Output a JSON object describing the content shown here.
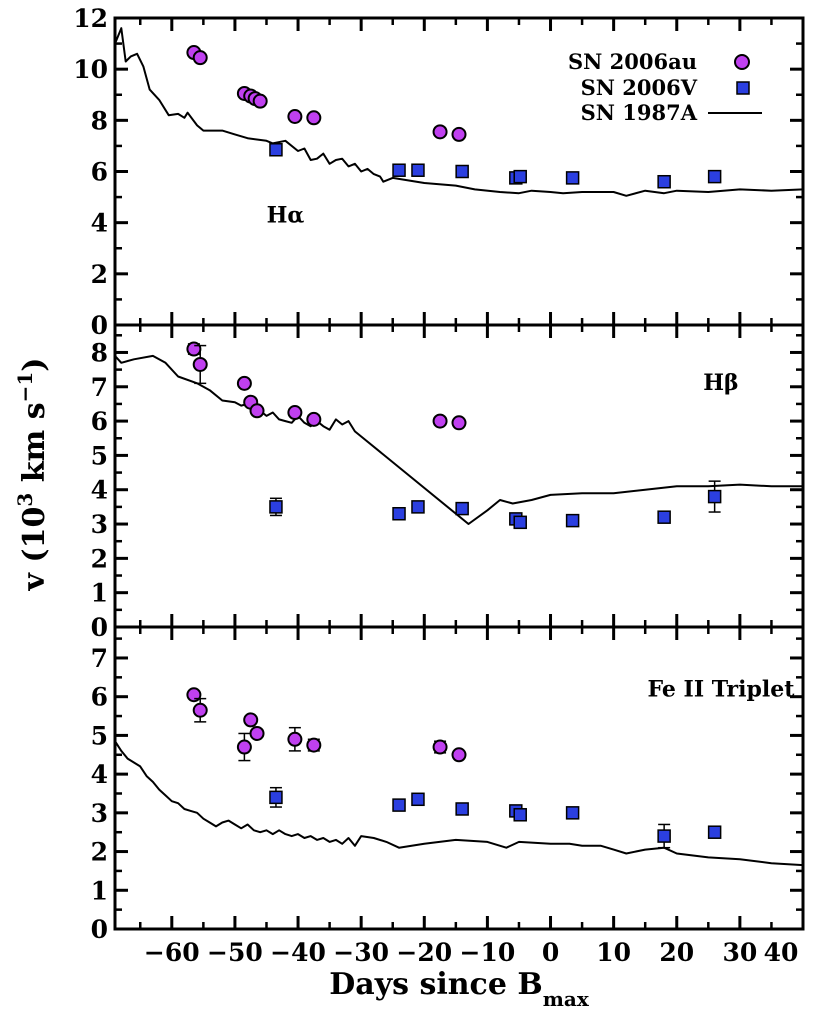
{
  "chart_data": {
    "type": "scatter",
    "xlabel": "Days since B",
    "xlabel_sub": "max",
    "ylabel_main": "v (10",
    "ylabel_sup1": "3",
    "ylabel_mid": " km s",
    "ylabel_sup2": "−1",
    "ylabel_end": ")",
    "xlim": [
      -69,
      40
    ],
    "xticks": [
      -60,
      -50,
      -40,
      -30,
      -20,
      -10,
      0,
      10,
      20,
      30,
      40
    ],
    "xtick_labels": [
      "−60",
      "−50",
      "−40",
      "−30",
      "−20",
      "−10",
      "0",
      "10",
      "20",
      "30",
      "40"
    ],
    "legend": {
      "position": "top-right",
      "entries": [
        {
          "label": "SN 2006au",
          "marker": "circle",
          "color": "#c040f0"
        },
        {
          "label": "SN 2006V",
          "marker": "square",
          "color": "#2b3fe0"
        },
        {
          "label": "SN 1987A",
          "marker": "line",
          "color": "#000000"
        }
      ]
    },
    "panels": [
      {
        "label": "Hα",
        "label_anchor": {
          "x": -42,
          "y": 4.0
        },
        "ylim": [
          0,
          12
        ],
        "yticks": [
          0,
          2,
          4,
          6,
          8,
          10,
          12
        ],
        "sn2006au": [
          {
            "x": -56.5,
            "y": 10.65
          },
          {
            "x": -55.5,
            "y": 10.45
          },
          {
            "x": -48.5,
            "y": 9.05
          },
          {
            "x": -47.5,
            "y": 8.95
          },
          {
            "x": -46.8,
            "y": 8.85
          },
          {
            "x": -46.0,
            "y": 8.75
          },
          {
            "x": -40.5,
            "y": 8.15
          },
          {
            "x": -37.5,
            "y": 8.1
          },
          {
            "x": -17.5,
            "y": 7.55,
            "err": 0.15
          },
          {
            "x": -14.5,
            "y": 7.45
          }
        ],
        "sn2006v": [
          {
            "x": -43.5,
            "y": 6.85
          },
          {
            "x": -24.0,
            "y": 6.05
          },
          {
            "x": -21.0,
            "y": 6.05
          },
          {
            "x": -14.0,
            "y": 6.0
          },
          {
            "x": -5.5,
            "y": 5.75
          },
          {
            "x": -4.8,
            "y": 5.8
          },
          {
            "x": 3.5,
            "y": 5.75
          },
          {
            "x": 18.0,
            "y": 5.6
          },
          {
            "x": 26.0,
            "y": 5.8
          }
        ],
        "sn1987a": [
          [
            -69,
            11.0
          ],
          [
            -68,
            11.6
          ],
          [
            -67.3,
            10.3
          ],
          [
            -66.5,
            10.5
          ],
          [
            -65.5,
            10.6
          ],
          [
            -64.5,
            10.1
          ],
          [
            -63.5,
            9.2
          ],
          [
            -62,
            8.8
          ],
          [
            -60.5,
            8.2
          ],
          [
            -59,
            8.25
          ],
          [
            -58,
            8.1
          ],
          [
            -57.5,
            8.3
          ],
          [
            -56,
            7.8
          ],
          [
            -55,
            7.6
          ],
          [
            -52,
            7.6
          ],
          [
            -50,
            7.45
          ],
          [
            -48,
            7.3
          ],
          [
            -45,
            7.2
          ],
          [
            -44,
            7.1
          ],
          [
            -42,
            7.2
          ],
          [
            -40,
            6.8
          ],
          [
            -39,
            6.9
          ],
          [
            -38,
            6.45
          ],
          [
            -37,
            6.5
          ],
          [
            -36,
            6.7
          ],
          [
            -35,
            6.3
          ],
          [
            -34,
            6.45
          ],
          [
            -33,
            6.5
          ],
          [
            -32,
            6.2
          ],
          [
            -31,
            6.3
          ],
          [
            -30,
            6.0
          ],
          [
            -29,
            6.1
          ],
          [
            -28,
            5.9
          ],
          [
            -27,
            5.8
          ],
          [
            -26.5,
            5.6
          ],
          [
            -25,
            5.75
          ],
          [
            -20,
            5.55
          ],
          [
            -15,
            5.45
          ],
          [
            -12,
            5.3
          ],
          [
            -8,
            5.2
          ],
          [
            -5,
            5.15
          ],
          [
            -3,
            5.25
          ],
          [
            0,
            5.2
          ],
          [
            2,
            5.15
          ],
          [
            5,
            5.2
          ],
          [
            10,
            5.2
          ],
          [
            12,
            5.05
          ],
          [
            15,
            5.25
          ],
          [
            18,
            5.15
          ],
          [
            20,
            5.25
          ],
          [
            25,
            5.2
          ],
          [
            30,
            5.3
          ],
          [
            35,
            5.25
          ],
          [
            40,
            5.3
          ]
        ]
      },
      {
        "label": "Hβ",
        "label_anchor": {
          "x": 27,
          "y": 6.9
        },
        "ylim": [
          0,
          8.8
        ],
        "yticks": [
          0,
          1,
          2,
          3,
          4,
          5,
          6,
          7,
          8
        ],
        "sn2006au": [
          {
            "x": -56.5,
            "y": 8.1,
            "err": 0.15
          },
          {
            "x": -55.5,
            "y": 7.65,
            "err": 0.55
          },
          {
            "x": -48.5,
            "y": 7.1
          },
          {
            "x": -47.5,
            "y": 6.55
          },
          {
            "x": -46.5,
            "y": 6.3
          },
          {
            "x": -40.5,
            "y": 6.25
          },
          {
            "x": -37.5,
            "y": 6.05,
            "err": 0.12
          },
          {
            "x": -17.5,
            "y": 6.0
          },
          {
            "x": -14.5,
            "y": 5.95
          }
        ],
        "sn2006v": [
          {
            "x": -43.5,
            "y": 3.5,
            "err": 0.25
          },
          {
            "x": -24.0,
            "y": 3.3
          },
          {
            "x": -21.0,
            "y": 3.5
          },
          {
            "x": -14.0,
            "y": 3.45
          },
          {
            "x": -5.5,
            "y": 3.15
          },
          {
            "x": -4.8,
            "y": 3.05,
            "err": 0.1
          },
          {
            "x": 3.5,
            "y": 3.1
          },
          {
            "x": 18.0,
            "y": 3.2
          },
          {
            "x": 26.0,
            "y": 3.8,
            "err": 0.45
          }
        ],
        "sn1987a": [
          [
            -69,
            7.9
          ],
          [
            -68,
            7.7
          ],
          [
            -66,
            7.8
          ],
          [
            -63,
            7.9
          ],
          [
            -61,
            7.7
          ],
          [
            -59,
            7.3
          ],
          [
            -56,
            7.1
          ],
          [
            -54,
            6.9
          ],
          [
            -52,
            6.6
          ],
          [
            -50,
            6.55
          ],
          [
            -49,
            6.45
          ],
          [
            -48,
            6.5
          ],
          [
            -47,
            6.45
          ],
          [
            -46,
            6.3
          ],
          [
            -45,
            6.15
          ],
          [
            -44,
            6.25
          ],
          [
            -43,
            6.05
          ],
          [
            -42,
            6.0
          ],
          [
            -41,
            5.95
          ],
          [
            -40,
            6.15
          ],
          [
            -39,
            5.95
          ],
          [
            -38,
            5.85
          ],
          [
            -37,
            6.0
          ],
          [
            -36,
            5.85
          ],
          [
            -35,
            5.75
          ],
          [
            -34,
            6.05
          ],
          [
            -33,
            5.9
          ],
          [
            -32,
            6.0
          ],
          [
            -31,
            5.7
          ],
          [
            -30,
            5.55
          ],
          [
            -13,
            3.0
          ],
          [
            -10,
            3.4
          ],
          [
            -8,
            3.7
          ],
          [
            -6,
            3.6
          ],
          [
            -3,
            3.7
          ],
          [
            0,
            3.85
          ],
          [
            5,
            3.9
          ],
          [
            10,
            3.9
          ],
          [
            15,
            4.0
          ],
          [
            20,
            4.1
          ],
          [
            25,
            4.1
          ],
          [
            30,
            4.15
          ],
          [
            35,
            4.1
          ],
          [
            40,
            4.1
          ]
        ]
      },
      {
        "label": "Fe II Triplet",
        "label_anchor": {
          "x": 27,
          "y": 6.0
        },
        "ylim": [
          0,
          7.8
        ],
        "yticks": [
          0,
          1,
          2,
          3,
          4,
          5,
          6,
          7
        ],
        "sn2006au": [
          {
            "x": -56.5,
            "y": 6.05
          },
          {
            "x": -55.5,
            "y": 5.65,
            "err": 0.3
          },
          {
            "x": -48.5,
            "y": 4.7,
            "err": 0.35
          },
          {
            "x": -47.5,
            "y": 5.4
          },
          {
            "x": -46.5,
            "y": 5.05
          },
          {
            "x": -40.5,
            "y": 4.9,
            "err": 0.3
          },
          {
            "x": -37.5,
            "y": 4.75,
            "err": 0.15
          },
          {
            "x": -17.5,
            "y": 4.7,
            "err": 0.15
          },
          {
            "x": -14.5,
            "y": 4.5
          }
        ],
        "sn2006v": [
          {
            "x": -43.5,
            "y": 3.4,
            "err": 0.25
          },
          {
            "x": -24.0,
            "y": 3.2
          },
          {
            "x": -21.0,
            "y": 3.35
          },
          {
            "x": -14.0,
            "y": 3.1
          },
          {
            "x": -5.5,
            "y": 3.05,
            "err": 0.1
          },
          {
            "x": -4.8,
            "y": 2.95,
            "err": 0.15
          },
          {
            "x": 3.5,
            "y": 3.0
          },
          {
            "x": 18.0,
            "y": 2.4,
            "err": 0.3
          },
          {
            "x": 26.0,
            "y": 2.5
          }
        ],
        "sn1987a": [
          [
            -69,
            4.85
          ],
          [
            -68,
            4.6
          ],
          [
            -67,
            4.4
          ],
          [
            -66,
            4.3
          ],
          [
            -65,
            4.2
          ],
          [
            -64,
            3.95
          ],
          [
            -63,
            3.8
          ],
          [
            -62,
            3.6
          ],
          [
            -61,
            3.45
          ],
          [
            -60,
            3.3
          ],
          [
            -59,
            3.25
          ],
          [
            -58,
            3.1
          ],
          [
            -57,
            3.05
          ],
          [
            -56,
            3.0
          ],
          [
            -55,
            2.85
          ],
          [
            -54,
            2.75
          ],
          [
            -53,
            2.65
          ],
          [
            -52,
            2.75
          ],
          [
            -51,
            2.8
          ],
          [
            -50,
            2.7
          ],
          [
            -49,
            2.6
          ],
          [
            -48,
            2.7
          ],
          [
            -47,
            2.55
          ],
          [
            -46,
            2.5
          ],
          [
            -45,
            2.55
          ],
          [
            -44,
            2.45
          ],
          [
            -43,
            2.55
          ],
          [
            -42,
            2.45
          ],
          [
            -41,
            2.4
          ],
          [
            -40,
            2.45
          ],
          [
            -39,
            2.35
          ],
          [
            -38,
            2.4
          ],
          [
            -37,
            2.3
          ],
          [
            -36,
            2.35
          ],
          [
            -35,
            2.25
          ],
          [
            -34,
            2.3
          ],
          [
            -33,
            2.2
          ],
          [
            -32,
            2.35
          ],
          [
            -31,
            2.15
          ],
          [
            -30,
            2.4
          ],
          [
            -28,
            2.35
          ],
          [
            -26,
            2.25
          ],
          [
            -24,
            2.1
          ],
          [
            -20,
            2.2
          ],
          [
            -15,
            2.3
          ],
          [
            -10,
            2.25
          ],
          [
            -7,
            2.1
          ],
          [
            -5,
            2.25
          ],
          [
            0,
            2.2
          ],
          [
            3,
            2.2
          ],
          [
            5,
            2.15
          ],
          [
            8,
            2.15
          ],
          [
            10,
            2.05
          ],
          [
            12,
            1.95
          ],
          [
            15,
            2.05
          ],
          [
            18,
            2.1
          ],
          [
            20,
            1.95
          ],
          [
            25,
            1.85
          ],
          [
            30,
            1.8
          ],
          [
            35,
            1.7
          ],
          [
            40,
            1.65
          ]
        ]
      }
    ]
  }
}
